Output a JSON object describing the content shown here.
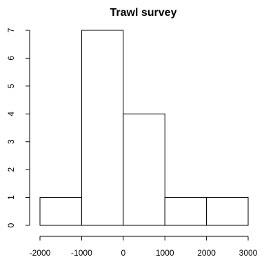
{
  "chart_data": {
    "type": "bar",
    "title": "Trawl survey",
    "xlabel": "",
    "ylabel": "",
    "bins": [
      {
        "x0": -2000,
        "x1": -1000,
        "count": 1
      },
      {
        "x0": -1000,
        "x1": 0,
        "count": 7
      },
      {
        "x0": 0,
        "x1": 1000,
        "count": 4
      },
      {
        "x0": 1000,
        "x1": 2000,
        "count": 1
      },
      {
        "x0": 2000,
        "x1": 3000,
        "count": 1
      }
    ],
    "xlim": [
      -2000,
      3000
    ],
    "ylim": [
      0,
      7
    ],
    "x_ticks": [
      -2000,
      -1000,
      0,
      1000,
      2000,
      3000
    ],
    "x_tick_labels": [
      "-2000",
      "-1000",
      "0",
      "1000",
      "2000",
      "3000"
    ],
    "y_ticks": [
      0,
      1,
      2,
      3,
      4,
      5,
      6,
      7
    ],
    "y_tick_labels": [
      "0",
      "1",
      "2",
      "3",
      "4",
      "5",
      "6",
      "7"
    ],
    "grid": false,
    "legend": "none"
  }
}
